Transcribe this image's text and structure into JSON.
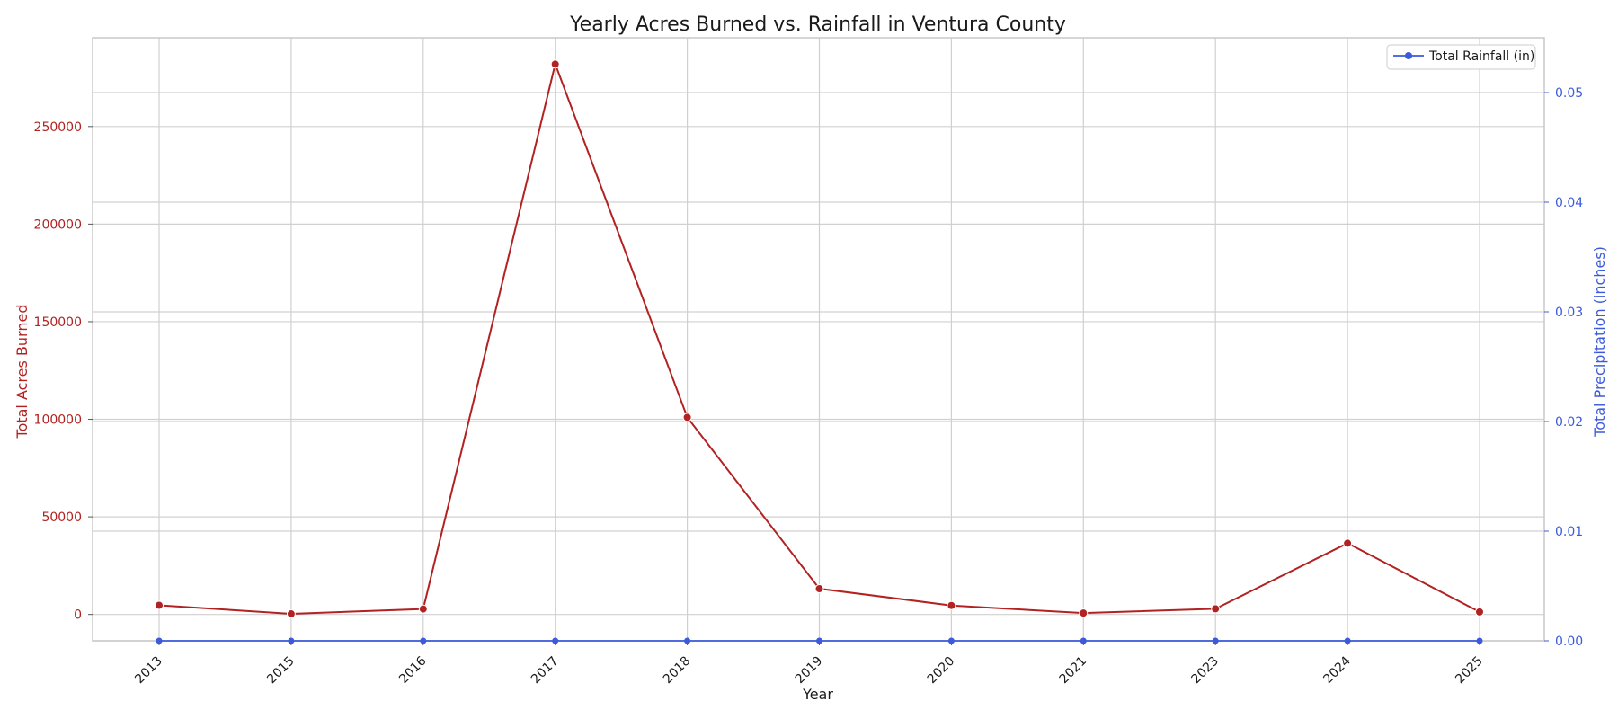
{
  "chart_data": {
    "type": "line",
    "title": "Yearly Acres Burned vs. Rainfall in Ventura County",
    "xlabel": "Year",
    "ylabel": "Total Acres Burned",
    "y2label": "Total Precipitation (inches)",
    "categories": [
      "2013",
      "2015",
      "2016",
      "2017",
      "2018",
      "2019",
      "2020",
      "2021",
      "2023",
      "2024",
      "2025"
    ],
    "ylim": [
      -13500,
      295500
    ],
    "y2lim": [
      0.0,
      0.055
    ],
    "yticks": [
      0,
      50000,
      100000,
      150000,
      200000,
      250000
    ],
    "ytick_labels": [
      "0",
      "50000",
      "100000",
      "150000",
      "200000",
      "250000"
    ],
    "y2ticks": [
      0.0,
      0.01,
      0.02,
      0.03,
      0.04,
      0.05
    ],
    "y2tick_labels": [
      "0.00",
      "0.01",
      "0.02",
      "0.03",
      "0.04",
      "0.05"
    ],
    "grid": true,
    "legend_position": "top-right",
    "colors": {
      "acres": "#b22222",
      "rainfall": "#3b5bdb",
      "grid": "#d0d0d0",
      "axes": "#c8c8c8"
    },
    "series": [
      {
        "axis": "left",
        "values": [
          4700,
          300,
          2800,
          282000,
          101000,
          13200,
          4600,
          700,
          2900,
          36500,
          1300
        ]
      },
      {
        "name": "Total Rainfall (in)",
        "axis": "right",
        "values": [
          0,
          0,
          0,
          0,
          0,
          0,
          0,
          0,
          0,
          0,
          0
        ]
      }
    ]
  }
}
